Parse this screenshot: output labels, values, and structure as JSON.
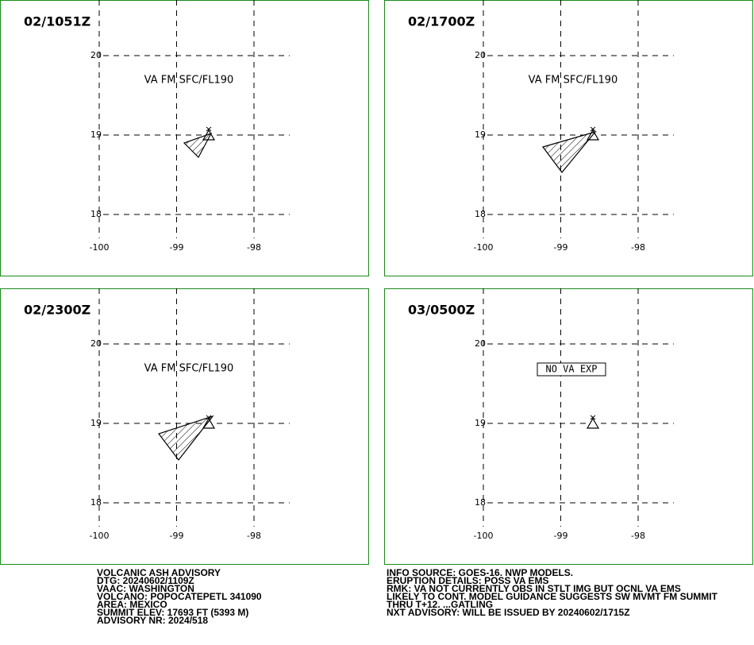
{
  "panels": [
    {
      "time": "02/1051Z",
      "label": "VA FM SFC/FL190"
    },
    {
      "time": "02/1700Z",
      "label": "VA FM SFC/FL190"
    },
    {
      "time": "02/2300Z",
      "label": "VA FM SFC/FL190"
    },
    {
      "time": "03/0500Z",
      "label": "NO VA EXP"
    }
  ],
  "x_ticks": [
    -100,
    -99,
    -98
  ],
  "y_ticks": [
    20,
    19,
    18
  ],
  "footer_left": [
    "VOLCANIC ASH ADVISORY",
    "DTG: 20240602/1109Z",
    "VAAC: WASHINGTON",
    "VOLCANO: POPOCATEPETL 341090",
    "AREA: MEXICO",
    "SUMMIT ELEV: 17693 FT (5393 M)",
    "ADVISORY NR: 2024/518"
  ],
  "footer_right": [
    "INFO SOURCE: GOES-16. NWP MODELS.",
    "ERUPTION DETAILS: POSS VA EMS",
    "RMK: VA NOT CURRENTLY OBS IN STLT IMG BUT OCNL VA EMS",
    "LIKELY TO CONT. MODEL GUIDANCE SUGGESTS SW MVMT FM SUMMIT",
    "THRU T+12. ...GATLING",
    "NXT ADVISORY: WILL BE ISSUED BY 20240602/1715Z"
  ]
}
